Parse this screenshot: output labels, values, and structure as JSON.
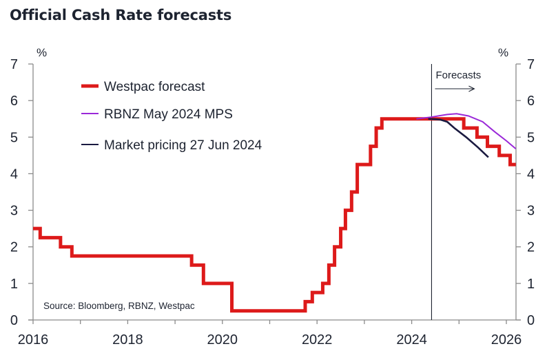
{
  "chart_data": {
    "type": "line",
    "title": "Official Cash Rate forecasts",
    "xlabel": "",
    "ylabel_left": "%",
    "ylabel_right": "%",
    "xlim": [
      2016,
      2026.2
    ],
    "ylim": [
      0,
      7
    ],
    "x_ticks": [
      2016,
      2017,
      2018,
      2019,
      2020,
      2021,
      2022,
      2023,
      2024,
      2025,
      2026
    ],
    "x_tick_labels": [
      "2016",
      "",
      "2018",
      "",
      "2020",
      "",
      "2022",
      "",
      "2024",
      "",
      "2026"
    ],
    "y_ticks": [
      0,
      1,
      2,
      3,
      4,
      5,
      6,
      7
    ],
    "y_tick_labels": [
      "0",
      "1",
      "2",
      "3",
      "4",
      "5",
      "6",
      "7"
    ],
    "grid": false,
    "legend_position": "top-left",
    "annotations": {
      "forecast_start_x": 2024.42,
      "forecast_label": "Forecasts",
      "source": "Source: Bloomberg, RBNZ, Westpac"
    },
    "series": [
      {
        "name": "Westpac forecast",
        "color": "#dd1a1a",
        "step": true,
        "points": [
          [
            2016.0,
            2.5
          ],
          [
            2016.15,
            2.25
          ],
          [
            2016.58,
            2.0
          ],
          [
            2016.82,
            1.75
          ],
          [
            2019.35,
            1.5
          ],
          [
            2019.6,
            1.0
          ],
          [
            2020.2,
            0.25
          ],
          [
            2021.75,
            0.5
          ],
          [
            2021.9,
            0.75
          ],
          [
            2022.12,
            1.0
          ],
          [
            2022.25,
            1.5
          ],
          [
            2022.37,
            2.0
          ],
          [
            2022.5,
            2.5
          ],
          [
            2022.6,
            3.0
          ],
          [
            2022.73,
            3.5
          ],
          [
            2022.85,
            4.25
          ],
          [
            2023.13,
            4.75
          ],
          [
            2023.25,
            5.25
          ],
          [
            2023.37,
            5.5
          ],
          [
            2025.1,
            5.25
          ],
          [
            2025.38,
            5.0
          ],
          [
            2025.6,
            4.75
          ],
          [
            2025.85,
            4.5
          ],
          [
            2026.08,
            4.25
          ],
          [
            2026.2,
            4.25
          ]
        ]
      },
      {
        "name": "RBNZ May 2024 MPS",
        "color": "#9a28d8",
        "step": false,
        "points": [
          [
            2024.1,
            5.5
          ],
          [
            2024.42,
            5.55
          ],
          [
            2024.75,
            5.62
          ],
          [
            2024.95,
            5.64
          ],
          [
            2025.2,
            5.58
          ],
          [
            2025.5,
            5.42
          ],
          [
            2025.75,
            5.15
          ],
          [
            2026.0,
            4.9
          ],
          [
            2026.2,
            4.68
          ]
        ]
      },
      {
        "name": "Market pricing 27 Jun 2024",
        "color": "#1a1a40",
        "step": false,
        "points": [
          [
            2024.35,
            5.5
          ],
          [
            2024.6,
            5.48
          ],
          [
            2024.75,
            5.42
          ],
          [
            2024.9,
            5.25
          ],
          [
            2025.15,
            5.0
          ],
          [
            2025.4,
            4.72
          ],
          [
            2025.62,
            4.45
          ]
        ]
      }
    ]
  }
}
